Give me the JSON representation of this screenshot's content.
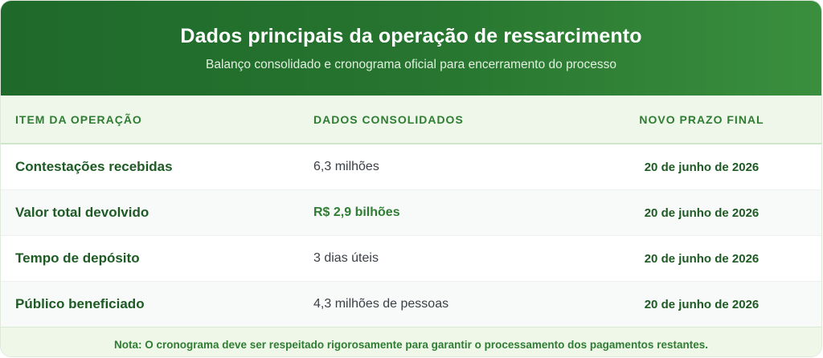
{
  "header": {
    "title": "Dados principais da operação de ressarcimento",
    "subtitle": "Balanço consolidado e cronograma oficial para encerramento do processo"
  },
  "table": {
    "columns": [
      "ITEM DA OPERAÇÃO",
      "DADOS CONSOLIDADOS",
      "NOVO PRAZO FINAL"
    ],
    "rows": [
      {
        "item": "Contestações recebidas",
        "value": "6,3 milhões",
        "deadline": "20 de junho de 2026"
      },
      {
        "item": "Valor total devolvido",
        "value": "R$ 2,9 bilhões",
        "deadline": "20 de junho de 2026",
        "highlight": true
      },
      {
        "item": "Tempo de depósito",
        "value": "3 dias úteis",
        "deadline": "20 de junho de 2026"
      },
      {
        "item": "Público beneficiado",
        "value": "4,3 milhões de pessoas",
        "deadline": "20 de junho de 2026"
      }
    ]
  },
  "footer": {
    "note": "Nota: O cronograma deve ser respeitado rigorosamente para garantir o processamento dos pagamentos restantes."
  },
  "colors": {
    "header_start": "#1f6a2b",
    "header_end": "#3a8f3e",
    "accent": "#2e7d32"
  }
}
